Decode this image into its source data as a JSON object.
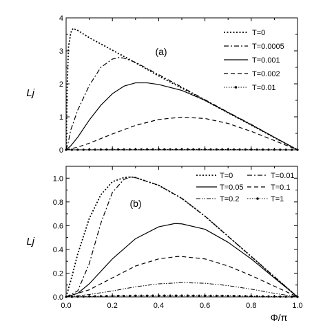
{
  "chart_data": [
    {
      "type": "line",
      "panel_label": "(a)",
      "ylabel": "Lj",
      "xlabel": "",
      "xlim": [
        0,
        1
      ],
      "ylim": [
        0,
        4
      ],
      "yticks": [
        "0",
        "1",
        "2",
        "3",
        "4"
      ],
      "xticks": [],
      "legend_position": "top-right",
      "series": [
        {
          "name": "T=0",
          "style": "dotted",
          "x": [
            0,
            0.005,
            0.01,
            0.02,
            0.03,
            0.05,
            0.1,
            0.2,
            0.3,
            0.4,
            0.5,
            0.6,
            0.7,
            0.8,
            0.9,
            1.0
          ],
          "y": [
            0,
            2.0,
            3.1,
            3.55,
            3.68,
            3.62,
            3.4,
            3.02,
            2.64,
            2.24,
            1.87,
            1.5,
            1.12,
            0.75,
            0.37,
            0
          ]
        },
        {
          "name": "T=0.0005",
          "style": "dash-dot",
          "x": [
            0,
            0.01,
            0.02,
            0.05,
            0.08,
            0.1,
            0.15,
            0.2,
            0.23,
            0.25,
            0.3,
            0.4,
            0.5,
            0.6,
            0.7,
            0.8,
            0.9,
            1.0
          ],
          "y": [
            0,
            0.25,
            0.6,
            1.2,
            1.65,
            1.95,
            2.5,
            2.75,
            2.8,
            2.78,
            2.65,
            2.28,
            1.9,
            1.52,
            1.14,
            0.77,
            0.38,
            0
          ]
        },
        {
          "name": "T=0.001",
          "style": "solid",
          "x": [
            0,
            0.02,
            0.05,
            0.1,
            0.15,
            0.2,
            0.25,
            0.3,
            0.35,
            0.4,
            0.5,
            0.6,
            0.7,
            0.8,
            0.9,
            1.0
          ],
          "y": [
            0,
            0.12,
            0.38,
            0.9,
            1.35,
            1.7,
            1.93,
            2.03,
            2.03,
            1.98,
            1.8,
            1.5,
            1.13,
            0.76,
            0.38,
            0
          ]
        },
        {
          "name": "T=0.002",
          "style": "dashed",
          "x": [
            0,
            0.05,
            0.1,
            0.2,
            0.3,
            0.4,
            0.5,
            0.6,
            0.7,
            0.8,
            0.9,
            1.0
          ],
          "y": [
            0,
            0.08,
            0.2,
            0.48,
            0.74,
            0.92,
            0.99,
            0.95,
            0.8,
            0.56,
            0.28,
            0
          ]
        },
        {
          "name": "T=0.01",
          "style": "dotted-markers",
          "x": [
            0,
            0.1,
            0.2,
            0.3,
            0.4,
            0.5,
            0.6,
            0.7,
            0.8,
            0.9,
            1.0
          ],
          "y": [
            0,
            0.005,
            0.01,
            0.012,
            0.013,
            0.013,
            0.012,
            0.01,
            0.008,
            0.004,
            0
          ]
        }
      ]
    },
    {
      "type": "line",
      "panel_label": "(b)",
      "ylabel": "Lj",
      "xlabel": "Φ/π",
      "xlim": [
        0,
        1
      ],
      "ylim": [
        0,
        1.1
      ],
      "yticks": [
        "0.0",
        "0.2",
        "0.4",
        "0.6",
        "0.8",
        "1.0"
      ],
      "xticks": [
        "0.0",
        "0.2",
        "0.4",
        "0.6",
        "0.8",
        "1.0"
      ],
      "legend_position": "top-right",
      "series": [
        {
          "name": "T=0",
          "style": "dotted",
          "x": [
            0,
            0.025,
            0.05,
            0.1,
            0.15,
            0.2,
            0.25,
            0.28,
            0.3,
            0.4,
            0.5,
            0.6,
            0.7,
            0.8,
            0.9,
            1.0
          ],
          "y": [
            0,
            0.17,
            0.36,
            0.66,
            0.86,
            0.97,
            1.005,
            1.01,
            1.005,
            0.94,
            0.83,
            0.68,
            0.51,
            0.34,
            0.17,
            0
          ]
        },
        {
          "name": "T=0.01",
          "style": "dash-dot",
          "x": [
            0,
            0.05,
            0.1,
            0.15,
            0.2,
            0.25,
            0.28,
            0.3,
            0.4,
            0.5,
            0.6,
            0.7,
            0.8,
            0.9,
            1.0
          ],
          "y": [
            0,
            0.05,
            0.28,
            0.62,
            0.88,
            0.99,
            1.01,
            1.005,
            0.94,
            0.83,
            0.68,
            0.51,
            0.34,
            0.17,
            0
          ]
        },
        {
          "name": "T=0.05",
          "style": "solid",
          "x": [
            0,
            0.05,
            0.1,
            0.2,
            0.3,
            0.4,
            0.47,
            0.5,
            0.6,
            0.7,
            0.8,
            0.9,
            1.0
          ],
          "y": [
            0,
            0.03,
            0.11,
            0.32,
            0.49,
            0.59,
            0.618,
            0.615,
            0.57,
            0.46,
            0.32,
            0.16,
            0
          ]
        },
        {
          "name": "T=0.1",
          "style": "dashed",
          "x": [
            0,
            0.1,
            0.2,
            0.3,
            0.4,
            0.48,
            0.5,
            0.6,
            0.7,
            0.8,
            0.9,
            1.0
          ],
          "y": [
            0,
            0.06,
            0.16,
            0.26,
            0.32,
            0.34,
            0.34,
            0.32,
            0.26,
            0.18,
            0.09,
            0
          ]
        },
        {
          "name": "T=0.2",
          "style": "dash-dot-dot",
          "x": [
            0,
            0.1,
            0.2,
            0.3,
            0.4,
            0.5,
            0.6,
            0.7,
            0.8,
            0.9,
            1.0
          ],
          "y": [
            0,
            0.02,
            0.05,
            0.085,
            0.11,
            0.12,
            0.115,
            0.095,
            0.065,
            0.03,
            0
          ]
        },
        {
          "name": "T=1",
          "style": "dotted-markers",
          "x": [
            0,
            0.1,
            0.2,
            0.3,
            0.4,
            0.5,
            0.6,
            0.7,
            0.8,
            0.9,
            1.0
          ],
          "y": [
            0,
            0.004,
            0.008,
            0.01,
            0.011,
            0.011,
            0.01,
            0.009,
            0.006,
            0.003,
            0
          ]
        }
      ]
    }
  ]
}
